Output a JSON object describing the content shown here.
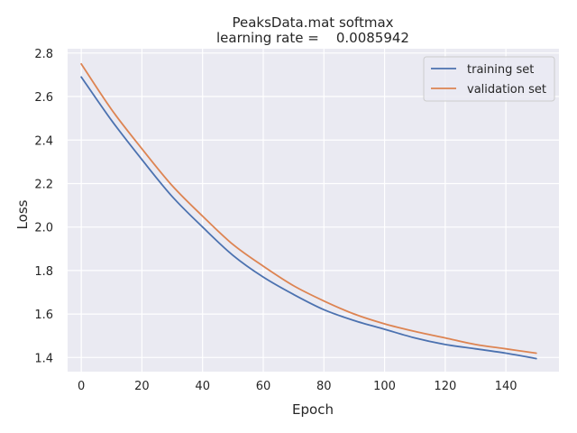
{
  "chart_data": {
    "type": "line",
    "title": "PeaksData.mat softmax",
    "subtitle": "learning rate =    0.0085942",
    "xlabel": "Epoch",
    "ylabel": "Loss",
    "xlim": [
      -4.5,
      157.5
    ],
    "ylim": [
      1.335,
      2.82
    ],
    "xticks": [
      0,
      20,
      40,
      60,
      80,
      100,
      120,
      140
    ],
    "yticks": [
      1.4,
      1.6,
      1.8,
      2.0,
      2.2,
      2.4,
      2.6,
      2.8
    ],
    "xtick_labels": [
      "0",
      "20",
      "40",
      "60",
      "80",
      "100",
      "120",
      "140"
    ],
    "ytick_labels": [
      "1.4",
      "1.6",
      "1.8",
      "2.0",
      "2.2",
      "2.4",
      "2.6",
      "2.8"
    ],
    "grid": true,
    "legend_position": "top-right",
    "background_color": "#eaeaf2",
    "series": [
      {
        "name": "training set",
        "color": "#4c72b0",
        "x": [
          0,
          10,
          20,
          30,
          40,
          50,
          60,
          70,
          80,
          90,
          100,
          110,
          120,
          130,
          140,
          150
        ],
        "values": [
          2.69,
          2.49,
          2.31,
          2.14,
          2.0,
          1.87,
          1.77,
          1.69,
          1.62,
          1.57,
          1.53,
          1.49,
          1.46,
          1.44,
          1.42,
          1.395
        ]
      },
      {
        "name": "validation set",
        "color": "#dd8452",
        "x": [
          0,
          10,
          20,
          30,
          40,
          50,
          60,
          70,
          80,
          90,
          100,
          110,
          120,
          130,
          140,
          150
        ],
        "values": [
          2.75,
          2.54,
          2.36,
          2.19,
          2.05,
          1.92,
          1.82,
          1.73,
          1.66,
          1.6,
          1.555,
          1.52,
          1.49,
          1.46,
          1.44,
          1.42
        ]
      }
    ]
  }
}
